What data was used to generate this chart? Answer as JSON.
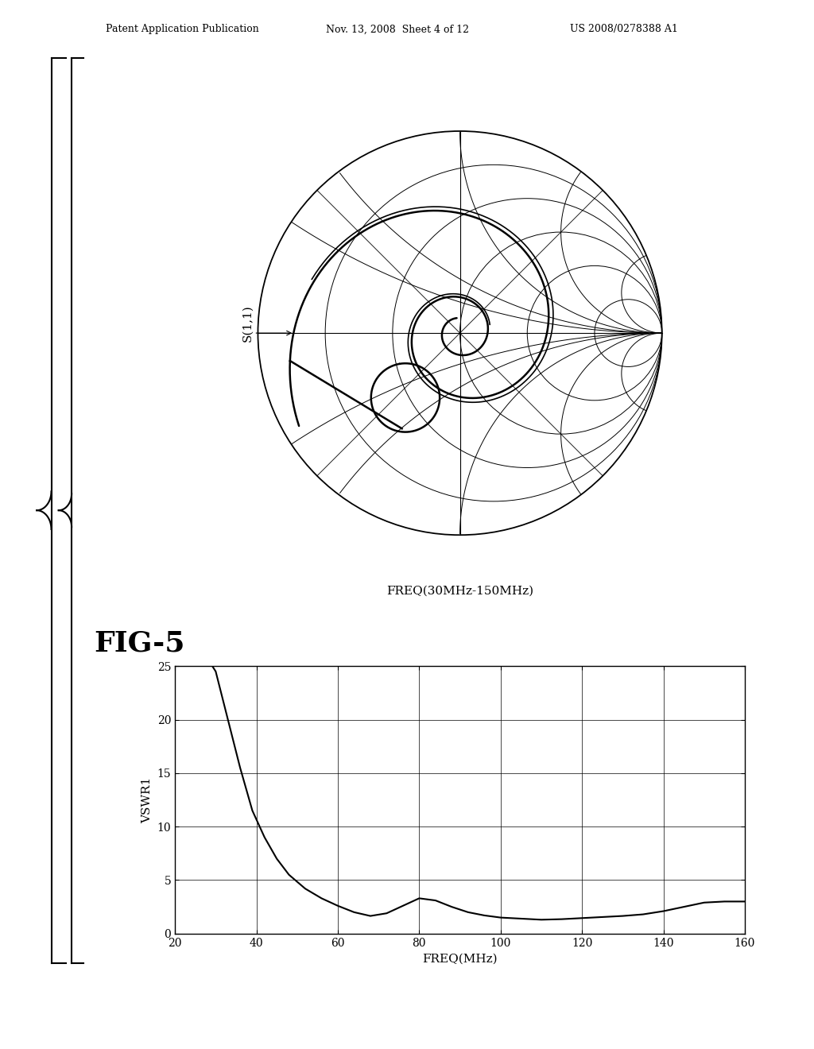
{
  "header_left": "Patent Application Publication",
  "header_middle": "Nov. 13, 2008  Sheet 4 of 12",
  "header_right": "US 2008/0278388 A1",
  "smith_xlabel": "FREQ(30MHz-150MHz)",
  "smith_ylabel": "S(1,1)",
  "fig_label": "FIG-5",
  "vswr_xlabel": "FREQ(MHz)",
  "vswr_ylabel": "VSWR1",
  "vswr_xlim": [
    20,
    160
  ],
  "vswr_ylim": [
    0,
    25
  ],
  "vswr_xticks": [
    20,
    40,
    60,
    80,
    100,
    120,
    140,
    160
  ],
  "vswr_yticks": [
    0,
    5,
    10,
    15,
    20,
    25
  ],
  "background_color": "#ffffff",
  "line_color": "#000000"
}
